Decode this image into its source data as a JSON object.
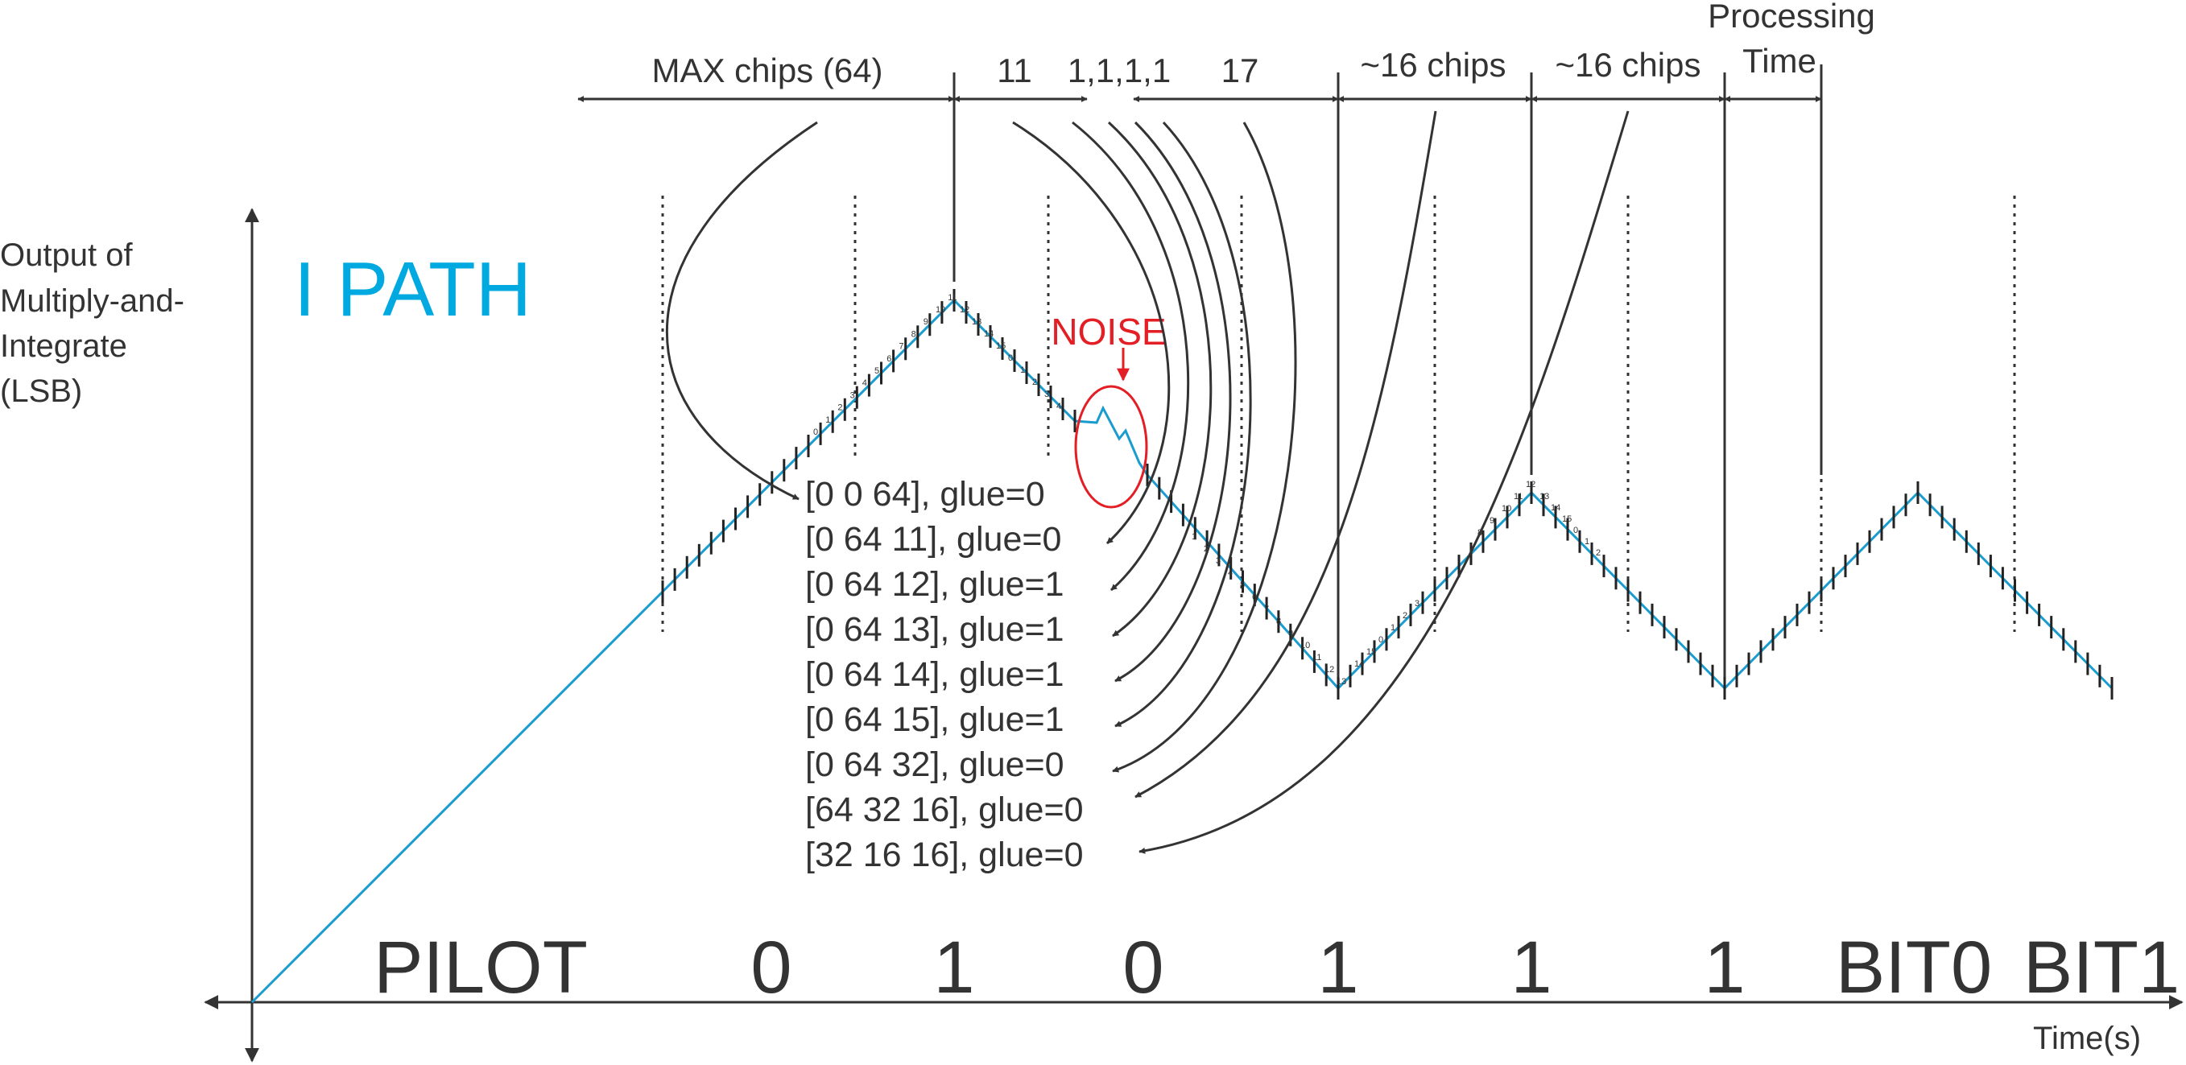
{
  "colors": {
    "ink": "#333333",
    "signal": "#1a9ccf",
    "title": "#00a9e0",
    "noise": "#e31e24"
  },
  "labels": {
    "y_axis": [
      "Output of",
      "Multiply-and-",
      "Integrate",
      "(LSB)"
    ],
    "x_axis": "Time(s)",
    "path_title": "I PATH",
    "noise": "NOISE",
    "bits": [
      "PILOT",
      "0",
      "1",
      "0",
      "1",
      "1",
      "1",
      "BIT0",
      "BIT1"
    ]
  },
  "spans": [
    {
      "label": "MAX chips (64)"
    },
    {
      "label": "11"
    },
    {
      "label": "1,1,1,1"
    },
    {
      "label": "17"
    },
    {
      "label": "~16 chips"
    },
    {
      "label": "~16 chips"
    },
    {
      "label": "Processing",
      "label2": "Time"
    }
  ],
  "states": [
    "[0 0 64], glue=0",
    "[0 64 11], glue=0",
    "[0 64 12], glue=1",
    "[0 64 13], glue=1",
    "[0 64 14], glue=1",
    "[0 64 15], glue=1",
    "[0 64 32], glue=0",
    "[64 32 16], glue=0",
    "[32 16 16], glue=0"
  ],
  "peak1_numbers": [
    "0",
    "1",
    "2",
    "3",
    "4",
    "5",
    "6",
    "7",
    "8",
    "9",
    "10",
    "11",
    "12",
    "13",
    "14",
    "15",
    "0",
    "1",
    "2",
    "3",
    "4"
  ],
  "valley1_numbers": [
    "1",
    "2",
    "3",
    "4",
    "5",
    "6",
    "7",
    "8",
    "9",
    "10",
    "11",
    "12",
    "13",
    "14",
    "15",
    "0",
    "1",
    "2",
    "3"
  ],
  "peak2_numbers": [
    "8",
    "9",
    "10",
    "11",
    "12",
    "13",
    "14",
    "15",
    "0",
    "1",
    "2"
  ]
}
